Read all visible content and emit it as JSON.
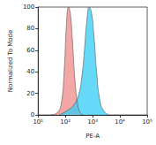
{
  "chart_data": {
    "type": "area",
    "x_label": "PE-A",
    "y_label": "Normalized To Mode",
    "log": "x",
    "xlim": [
      10,
      100000
    ],
    "xticks": [
      {
        "value": 10,
        "label": "10¹"
      },
      {
        "value": 100,
        "label": "10²"
      },
      {
        "value": 1000,
        "label": "10³"
      },
      {
        "value": 10000,
        "label": "10⁴"
      },
      {
        "value": 100000,
        "label": "10⁵"
      }
    ],
    "ylim": [
      0,
      100
    ],
    "yticks": [
      0,
      20,
      40,
      60,
      80,
      100
    ],
    "grid": false,
    "series": [
      {
        "color": "#f08a8a",
        "x": [
          30,
          50,
          70,
          90,
          110,
          130,
          150,
          180,
          220,
          280,
          350,
          450
        ],
        "values": [
          0,
          2,
          10,
          40,
          85,
          100,
          95,
          70,
          35,
          10,
          2,
          0
        ]
      },
      {
        "color": "#33ccf5",
        "x": [
          60,
          100,
          150,
          200,
          300,
          400,
          500,
          600,
          750,
          900,
          1100,
          1400,
          1800,
          2500,
          4000
        ],
        "values": [
          0,
          3,
          6,
          9,
          18,
          35,
          60,
          85,
          100,
          95,
          75,
          40,
          15,
          4,
          0
        ]
      }
    ]
  }
}
